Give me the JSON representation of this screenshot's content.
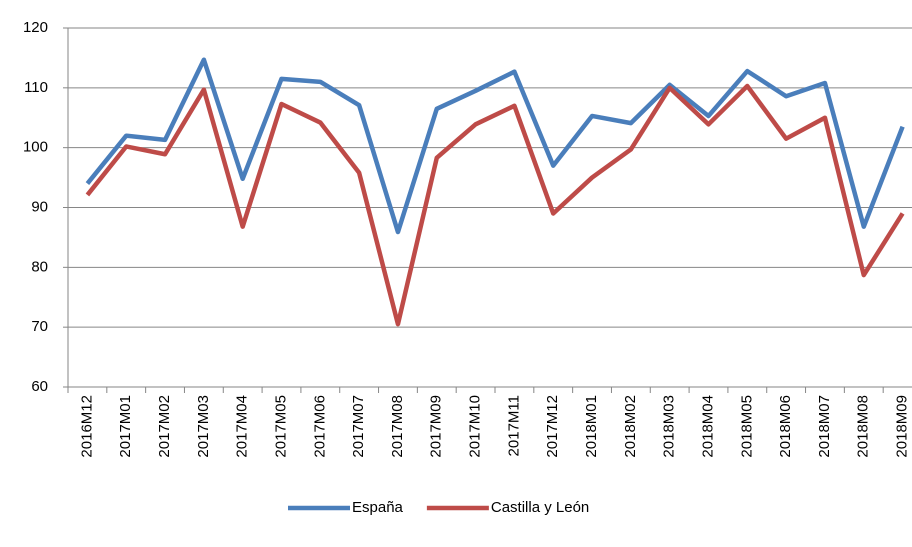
{
  "chart_data": {
    "type": "line",
    "categories": [
      "2016M12",
      "2017M01",
      "2017M02",
      "2017M03",
      "2017M04",
      "2017M05",
      "2017M06",
      "2017M07",
      "2017M08",
      "2017M09",
      "2017M10",
      "2017M11",
      "2017M12",
      "2018M01",
      "2018M02",
      "2018M03",
      "2018M04",
      "2018M05",
      "2018M06",
      "2018M07",
      "2018M08",
      "2018M09"
    ],
    "series": [
      {
        "name": "España",
        "color": "#4a7ebb",
        "values": [
          94,
          102,
          101.3,
          114.7,
          94.8,
          111.5,
          111,
          107.1,
          85.9,
          106.5,
          109.5,
          112.7,
          97,
          105.3,
          104.1,
          110.5,
          105.3,
          112.8,
          108.6,
          110.8,
          86.8,
          103.5
        ]
      },
      {
        "name": "Castilla y León",
        "color": "#be4b48",
        "values": [
          92.1,
          100.2,
          98.9,
          109.7,
          86.8,
          107.3,
          104.2,
          95.8,
          70.5,
          98.3,
          103.9,
          107,
          89,
          95,
          99.7,
          110,
          103.9,
          110.3,
          101.5,
          105,
          78.7,
          89
        ]
      }
    ],
    "ylim": [
      60,
      120
    ],
    "yticks": [
      60,
      70,
      80,
      90,
      100,
      110,
      120
    ],
    "grid": true,
    "legend": "bottom"
  }
}
